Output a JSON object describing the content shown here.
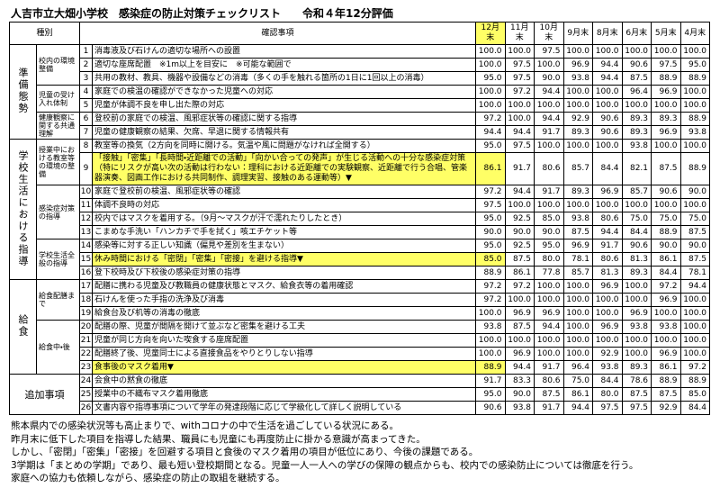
{
  "title": "人吉市立大畑小学校　感染症の防止対策チェックリスト　　令和４年12分評価",
  "table": {
    "headers": [
      "種別",
      "確認事項",
      "12月末",
      "11月末",
      "10月末",
      "9月末",
      "8月末",
      "6月末",
      "5月末",
      "4月末"
    ],
    "groups": [
      {
        "label": "準備態勢",
        "subgroups": [
          {
            "label": "校内の環境整備",
            "rows": [
              {
                "no": "1",
                "item": "消毒液及び石けんの適切な場所への設置",
                "values": [
                  "100.0",
                  "100.0",
                  "97.5",
                  "100.0",
                  "100.0",
                  "100.0",
                  "100.0",
                  "100.0"
                ]
              },
              {
                "no": "2",
                "item": "適切な座席配置　※1m以上を目安に　※可能な範囲で",
                "values": [
                  "100.0",
                  "97.5",
                  "100.0",
                  "96.9",
                  "94.4",
                  "90.6",
                  "97.5",
                  "95.0"
                ]
              },
              {
                "no": "3",
                "item": "共用の教材、教具、機器や設備などの消毒（多くの手を触れる箇所の1日に1回以上の消毒）",
                "values": [
                  "95.0",
                  "97.5",
                  "90.0",
                  "93.8",
                  "94.4",
                  "87.5",
                  "88.9",
                  "88.9"
                ]
              }
            ]
          },
          {
            "label": "児童の受け入れ体制",
            "rows": [
              {
                "no": "4",
                "item": "家庭での検温の確認ができなかった児童への対応",
                "values": [
                  "100.0",
                  "97.2",
                  "94.4",
                  "100.0",
                  "100.0",
                  "96.4",
                  "96.9",
                  "100.0"
                ]
              },
              {
                "no": "5",
                "item": "児童が体調不良を申し出た際の対応",
                "values": [
                  "100.0",
                  "100.0",
                  "100.0",
                  "100.0",
                  "100.0",
                  "100.0",
                  "100.0",
                  "100.0"
                ]
              }
            ]
          },
          {
            "label": "健康観察に関する共通理解",
            "rows": [
              {
                "no": "6",
                "item": "登校前の家庭での検温、風邪症状等の確認に関する指導",
                "values": [
                  "97.2",
                  "100.0",
                  "94.4",
                  "92.9",
                  "90.6",
                  "89.3",
                  "89.3",
                  "88.9"
                ]
              },
              {
                "no": "7",
                "item": "児童の健康観察の結果、欠席、早退に関する情報共有",
                "values": [
                  "94.4",
                  "94.4",
                  "91.7",
                  "89.3",
                  "90.6",
                  "89.3",
                  "96.9",
                  "93.8"
                ]
              }
            ]
          }
        ]
      },
      {
        "label": "学校生活における指導",
        "subgroups": [
          {
            "label": "授業中における教室等の環境の整備",
            "rows": [
              {
                "no": "8",
                "item": "教室等の換気（2方向を同時に開ける。気温や風に問題がなければ全開する）",
                "values": [
                  "95.0",
                  "97.5",
                  "100.0",
                  "100.0",
                  "100.0",
                  "93.8",
                  "100.0",
                  "100.0"
                ]
              },
              {
                "no": "9",
                "item": "「接触」「密集」「長時間・近距離での活動」「向かい合っての発声」が生じる活動への十分な感染症対策（特にリスクが高い次の活動は行わない：理科における近距離での実験観察、近距離で行う合唱、管楽器演奏、図画工作における共同制作、調理実習、接触のある運動等）▼",
                "values": [
                  "86.1",
                  "91.7",
                  "80.6",
                  "85.7",
                  "84.4",
                  "82.1",
                  "87.5",
                  "88.9"
                ],
                "highlight": true
              }
            ]
          },
          {
            "label": "感染症対策の指導",
            "rows": [
              {
                "no": "10",
                "item": "家庭で登校前の検温、風邪症状等の確認",
                "values": [
                  "97.2",
                  "94.4",
                  "91.7",
                  "89.3",
                  "96.9",
                  "85.7",
                  "90.6",
                  "90.0"
                ]
              },
              {
                "no": "11",
                "item": "体調不良時の対応",
                "values": [
                  "97.5",
                  "100.0",
                  "100.0",
                  "100.0",
                  "100.0",
                  "100.0",
                  "100.0",
                  "100.0"
                ]
              },
              {
                "no": "12",
                "item": "校内ではマスクを着用する。（9月～マスクが汗で濡れたりしたとき）",
                "values": [
                  "95.0",
                  "92.5",
                  "85.0",
                  "93.8",
                  "80.6",
                  "75.0",
                  "75.0",
                  "75.0"
                ]
              },
              {
                "no": "13",
                "item": "こまめな手洗い「ハンカチで手を拭く」咳エチケット等",
                "values": [
                  "90.0",
                  "90.0",
                  "90.0",
                  "87.5",
                  "94.4",
                  "84.4",
                  "88.9",
                  "87.5"
                ]
              }
            ]
          },
          {
            "label": "学校生活全般の指導",
            "rows": [
              {
                "no": "14",
                "item": "感染等に対する正しい知識（偏見や差別を生まない）",
                "values": [
                  "95.0",
                  "92.5",
                  "95.0",
                  "96.9",
                  "91.7",
                  "90.6",
                  "90.0",
                  "90.0"
                ]
              },
              {
                "no": "15",
                "item": "休み時間における「密閉」「密集」「密接」を避ける指導▼",
                "values": [
                  "85.0",
                  "87.5",
                  "80.0",
                  "78.1",
                  "80.6",
                  "81.3",
                  "86.1",
                  "87.5"
                ],
                "highlight": true
              },
              {
                "no": "16",
                "item": "登下校時及び下校後の感染症対策の指導",
                "values": [
                  "88.9",
                  "86.1",
                  "77.8",
                  "85.7",
                  "81.3",
                  "89.3",
                  "84.4",
                  "78.1"
                ]
              }
            ]
          }
        ]
      },
      {
        "label": "給食",
        "subgroups": [
          {
            "label": "給食配膳まで",
            "rows": [
              {
                "no": "17",
                "item": "配膳に携わる児童及び教職員の健康状態とマスク、給食衣等の着用確認",
                "values": [
                  "97.2",
                  "97.2",
                  "100.0",
                  "100.0",
                  "96.9",
                  "100.0",
                  "97.2",
                  "94.4"
                ]
              },
              {
                "no": "18",
                "item": "石けんを使った手指の洗浄及び消毒",
                "values": [
                  "97.2",
                  "100.0",
                  "100.0",
                  "100.0",
                  "100.0",
                  "100.0",
                  "96.9",
                  "100.0"
                ]
              },
              {
                "no": "19",
                "item": "給食台及び机等の消毒の徹底",
                "values": [
                  "100.0",
                  "96.9",
                  "96.9",
                  "100.0",
                  "100.0",
                  "96.9",
                  "100.0",
                  "100.0"
                ]
              }
            ]
          },
          {
            "label": "給食中・後",
            "rows": [
              {
                "no": "20",
                "item": "配膳の際、児童が間隔を開けて並ぶなど密集を避ける工夫",
                "values": [
                  "93.8",
                  "87.5",
                  "94.4",
                  "100.0",
                  "96.9",
                  "93.8",
                  "93.8",
                  "100.0"
                ]
              },
              {
                "no": "21",
                "item": "児童が同じ方向を向いた喫食する座席配置",
                "values": [
                  "100.0",
                  "100.0",
                  "100.0",
                  "100.0",
                  "100.0",
                  "100.0",
                  "100.0",
                  "100.0"
                ]
              },
              {
                "no": "22",
                "item": "配膳終了後、児童同士による直接食品をやりとりしない指導",
                "values": [
                  "100.0",
                  "96.9",
                  "100.0",
                  "100.0",
                  "92.9",
                  "100.0",
                  "96.9",
                  "100.0"
                ]
              },
              {
                "no": "23",
                "item": "食事後のマスク着用▼",
                "values": [
                  "88.9",
                  "94.4",
                  "91.7",
                  "96.4",
                  "93.8",
                  "89.3",
                  "86.1",
                  "97.2"
                ],
                "highlight": true
              }
            ]
          }
        ]
      },
      {
        "label": "追加事項",
        "subgroups": [
          {
            "rows": [
              {
                "no": "24",
                "item": "会食中の黙食の徹底",
                "values": [
                  "91.7",
                  "83.3",
                  "80.6",
                  "75.0",
                  "84.4",
                  "78.6",
                  "88.9",
                  "88.9"
                ]
              },
              {
                "no": "25",
                "item": "授業中の不織布マスク着用徹底",
                "values": [
                  "95.0",
                  "90.0",
                  "87.5",
                  "86.1",
                  "80.0",
                  "87.5",
                  "87.5",
                  "85.0"
                ]
              },
              {
                "no": "26",
                "item": "文書内容や指導事項について学年の発達段階に応じて学級化して詳しく説明している",
                "values": [
                  "90.6",
                  "93.8",
                  "91.7",
                  "94.4",
                  "97.5",
                  "97.5",
                  "92.9",
                  "84.4"
                ]
              }
            ]
          }
        ]
      }
    ]
  },
  "notes": [
    "熊本県内での感染状況等も高止まりで、withコロナの中で生活を過ごしている状況にある。",
    "昨月末に低下した項目を指導した結果、職員にも児童にも再度防止に掛かる意識が高まってきた。",
    "しかし、「密閉」「密集」「密接」を回避する項目と食後のマスク着用の項目が低位にあり、今後の課題である。",
    "3学期は「まとめの学期」であり、最も短い登校期間となる。児童一人一人への学びの保障の観点からも、校内での感染防止については徹底を行う。",
    "家庭への協力も依頼しながら、感染症の防止の取組を継続する。"
  ]
}
